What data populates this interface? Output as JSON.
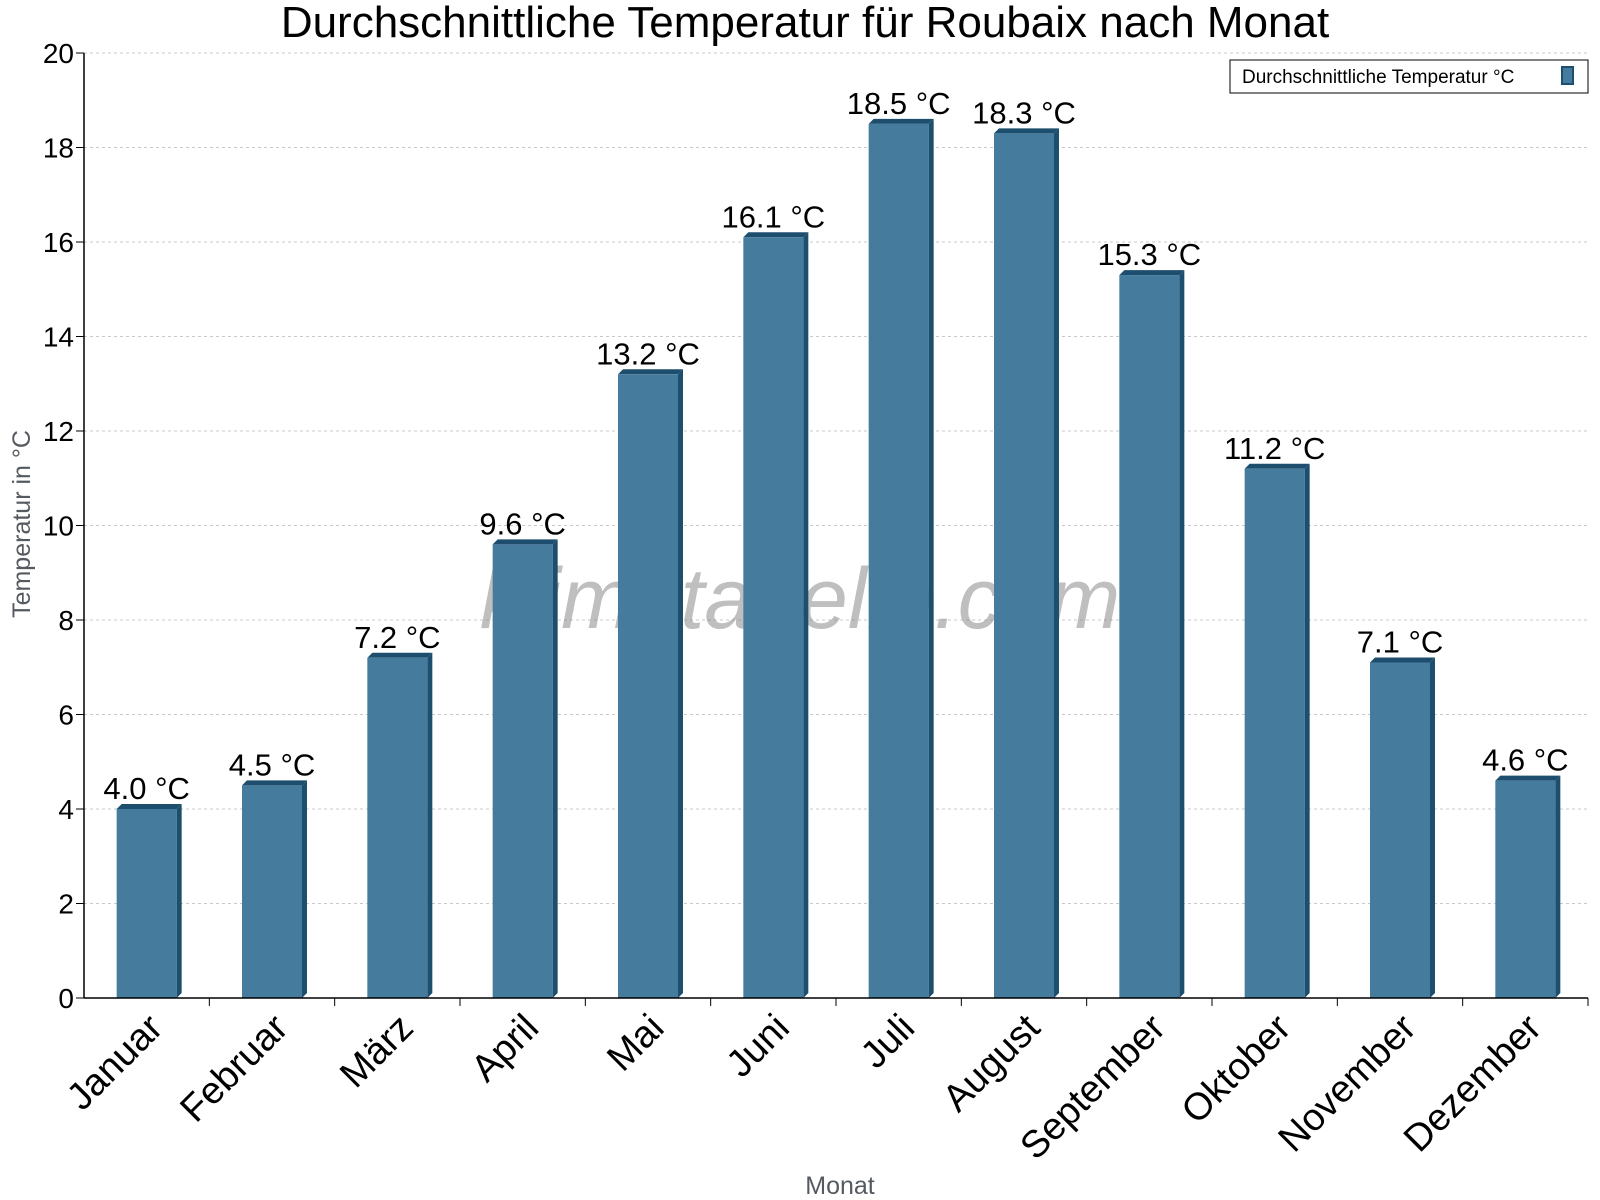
{
  "chart_data": {
    "type": "bar",
    "title": "Durchschnittliche Temperatur für Roubaix nach Monat",
    "xlabel": "Monat",
    "ylabel": "Temperatur in °C",
    "categories": [
      "Januar",
      "Februar",
      "März",
      "April",
      "Mai",
      "Juni",
      "Juli",
      "August",
      "September",
      "Oktober",
      "November",
      "Dezember"
    ],
    "series": [
      {
        "name": "Durchschnittliche Temperatur °C",
        "values": [
          4.0,
          4.5,
          7.2,
          9.6,
          13.2,
          16.1,
          18.5,
          18.3,
          15.3,
          11.2,
          7.1,
          4.6
        ],
        "labels": [
          "4.0 °C",
          "4.5 °C",
          "7.2 °C",
          "9.6 °C",
          "13.2 °C",
          "16.1 °C",
          "18.5 °C",
          "18.3 °C",
          "15.3 °C",
          "11.2 °C",
          "7.1 °C",
          "4.6 °C"
        ],
        "color": "#457b9d",
        "edge_color": "#1d4e6e"
      }
    ],
    "ylim": [
      0,
      20
    ],
    "yticks": [
      0,
      2,
      4,
      6,
      8,
      10,
      12,
      14,
      16,
      18,
      20
    ],
    "grid": true,
    "legend_position": "top-right",
    "watermark": "klimatabelle.com"
  }
}
